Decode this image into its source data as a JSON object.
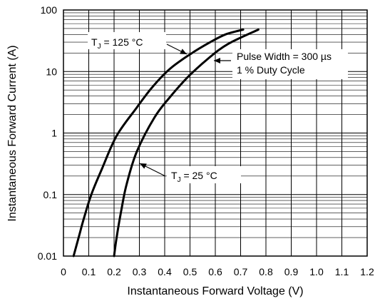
{
  "chart_data": {
    "type": "line",
    "xlabel": "Instantaneous Forward Voltage (V)",
    "ylabel": "Instantaneous Forward Current (A)",
    "xlim": [
      0,
      1.2
    ],
    "ylim": [
      0.01,
      100
    ],
    "y_scale": "log",
    "grid": true,
    "x_ticks": [
      "0",
      "0.1",
      "0.2",
      "0.3",
      "0.4",
      "0.5",
      "0.6",
      "0.7",
      "0.8",
      "0.9",
      "1.0",
      "1.1",
      "1.2"
    ],
    "y_ticks": [
      "0.01",
      "0.1",
      "1",
      "10",
      "100"
    ],
    "series": [
      {
        "name": "TJ = 125 °C",
        "label_main": "T",
        "label_sub": "J",
        "label_rest": " = 125 °C",
        "x": [
          0.04,
          0.06,
          0.08,
          0.11,
          0.15,
          0.21,
          0.29,
          0.35,
          0.42,
          0.5,
          0.58,
          0.64,
          0.71
        ],
        "y": [
          0.01,
          0.02,
          0.04,
          0.1,
          0.25,
          0.9,
          2.6,
          5.5,
          11,
          19,
          30,
          40,
          48
        ]
      },
      {
        "name": "TJ = 25 °C",
        "label_main": "T",
        "label_sub": "J",
        "label_rest": " = 25 °C",
        "x": [
          0.2,
          0.21,
          0.23,
          0.25,
          0.29,
          0.36,
          0.42,
          0.49,
          0.57,
          0.65,
          0.77
        ],
        "y": [
          0.01,
          0.02,
          0.06,
          0.15,
          0.5,
          1.8,
          3.8,
          8,
          16,
          28,
          48
        ]
      }
    ],
    "annotations": [
      "Pulse Width = 300 µs",
      "1 % Duty Cycle"
    ]
  }
}
